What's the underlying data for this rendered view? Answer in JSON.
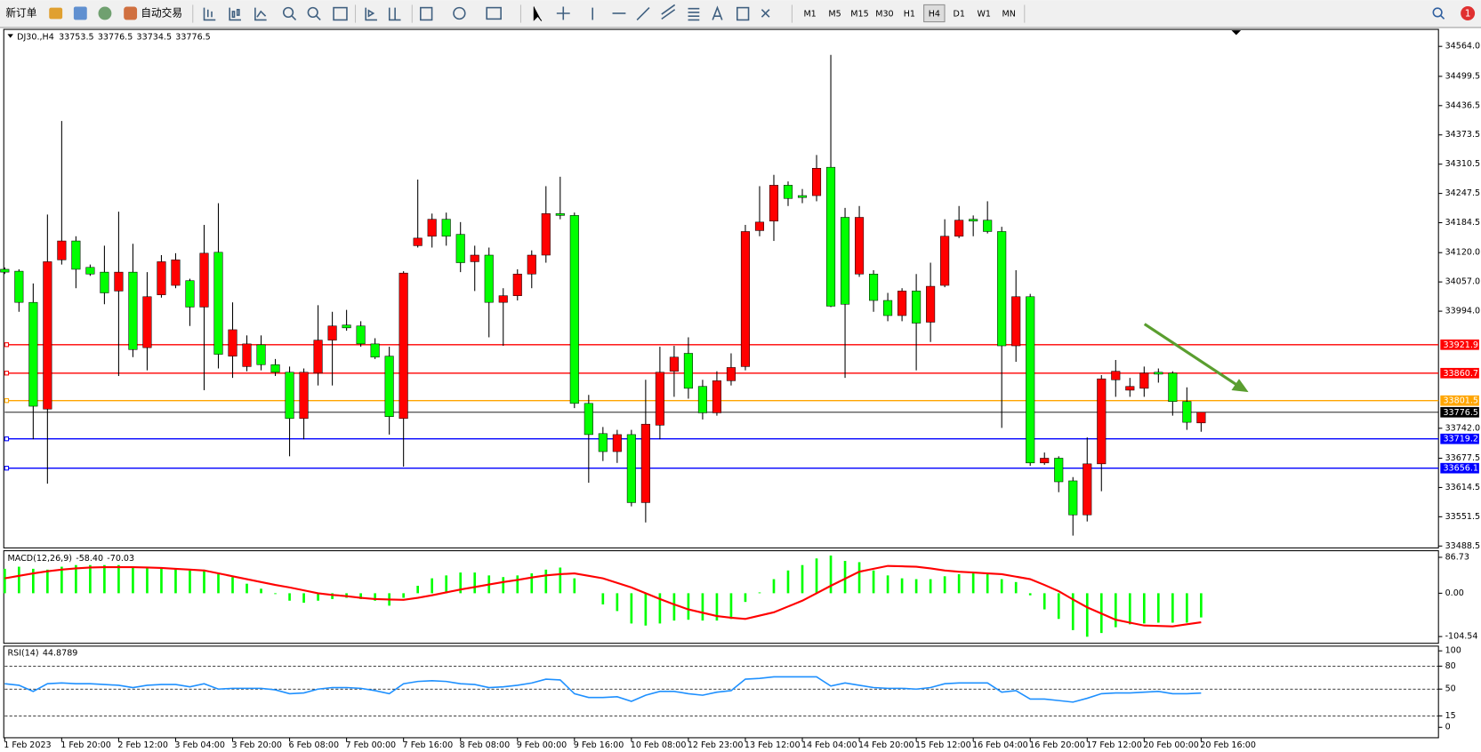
{
  "toolbar": {
    "new_order": "新订单",
    "auto_trading": "自动交易",
    "timeframes": [
      "M1",
      "M5",
      "M15",
      "M30",
      "H1",
      "H4",
      "D1",
      "W1",
      "MN"
    ],
    "active_timeframe": "H4",
    "notifications": 1
  },
  "chart_data": [
    {
      "type": "candlestick",
      "symbol": "DJ30.,H4",
      "categories": [
        "1 Feb 2023",
        null,
        null,
        null,
        "1 Feb 20:00",
        null,
        null,
        null,
        "2 Feb 12:00",
        null,
        null,
        null,
        "3 Feb 04:00",
        null,
        null,
        null,
        "3 Feb 20:00",
        null,
        null,
        null,
        "6 Feb 08:00",
        null,
        null,
        null,
        "7 Feb 00:00",
        null,
        null,
        null,
        "7 Feb 16:00",
        null,
        null,
        null,
        "8 Feb 08:00",
        null,
        null,
        null,
        "9 Feb 00:00",
        null,
        null,
        null,
        "9 Feb 16:00",
        null,
        null,
        null,
        "10 Feb 08:00",
        null,
        null,
        null,
        "12 Feb 23:00",
        null,
        null,
        null,
        "13 Feb 12:00",
        null,
        null,
        null,
        "14 Feb 04:00",
        null,
        null,
        null,
        "14 Feb 20:00",
        null,
        null,
        null,
        "15 Feb 12:00",
        null,
        null,
        null,
        "16 Feb 04:00",
        null,
        null,
        null,
        "16 Feb 20:00",
        null,
        null,
        null,
        "17 Feb 12:00",
        null,
        null,
        null,
        "20 Feb 00:00",
        null,
        null,
        null,
        "20 Feb 16:00"
      ],
      "open": [
        34084.2,
        34080.1,
        34013.0,
        33783.3,
        34104.5,
        34145.2,
        34088.3,
        34078.1,
        34037.4,
        34078.1,
        33915.5,
        34029.3,
        34049.6,
        34059.8,
        34002.9,
        34120.8,
        33897.2,
        33874.8,
        33921.6,
        33878.9,
        33862.6,
        33763.0,
        33860.6,
        33931.7,
        33964.2,
        33962.2,
        33923.6,
        33897.2,
        33763.0,
        34135.0,
        34155.3,
        34191.9,
        34159.4,
        34100.5,
        34114.7,
        34013.0,
        34027.3,
        34074.0,
        34114.7,
        34204.1,
        34200.1,
        33795.5,
        33730.5,
        33691.8,
        33728.4,
        33582.0,
        33748.7,
        33864.7,
        33903.3,
        33832.1,
        33775.2,
        33844.3,
        33874.8,
        34167.5,
        34187.9,
        34265.1,
        34242.8,
        34242.8,
        34303.8,
        34196.0,
        34074.0,
        34074.0,
        34017.1,
        33984.6,
        34037.4,
        33970.3,
        34049.6,
        34155.3,
        34191.9,
        34189.9,
        34165.5,
        33919.5,
        34025.2,
        33667.4,
        33677.6,
        33628.8,
        33555.6,
        33665.4,
        33846.3,
        33824.0,
        33828.0,
        33862.6,
        33860.6,
        33799.6,
        33753.5
      ],
      "high": [
        34088.3,
        34084.2,
        34053.7,
        34202.1,
        34403.4,
        34155.3,
        34094.4,
        34135.0,
        34208.2,
        34139.1,
        34078.1,
        34114.7,
        34118.8,
        34063.9,
        34179.7,
        34226.5,
        34013.0,
        33941.9,
        33941.9,
        33891.1,
        33874.8,
        33870.7,
        34006.9,
        33992.7,
        33996.8,
        33972.4,
        33935.8,
        33917.5,
        34080.1,
        34277.3,
        34204.1,
        34206.2,
        34185.8,
        34135.0,
        34131.0,
        34043.5,
        34084.2,
        34124.9,
        34263.1,
        34283.4,
        34206.2,
        33813.8,
        33744.7,
        33738.6,
        33738.6,
        33846.3,
        33917.5,
        33919.5,
        33937.8,
        33846.3,
        33864.7,
        33903.3,
        34179.7,
        34263.1,
        34287.5,
        34273.3,
        34257.0,
        34330.2,
        34545.7,
        34216.3,
        34220.4,
        34082.2,
        34033.4,
        34043.5,
        34074.0,
        34098.4,
        34191.9,
        34220.4,
        34200.1,
        34230.6,
        34175.7,
        34082.2,
        34031.3,
        33689.8,
        33681.7,
        33636.9,
        33722.3,
        33856.5,
        33889.0,
        33850.4,
        33874.8,
        33870.7,
        33864.7,
        33830.1,
        33776.5
      ],
      "low": [
        34074.0,
        33992.7,
        33718.3,
        33622.7,
        34094.4,
        34043.5,
        34070.0,
        34009.0,
        33854.5,
        33895.1,
        33866.7,
        34023.2,
        34043.5,
        33962.2,
        33824.0,
        33870.7,
        33850.4,
        33864.7,
        33866.7,
        33854.5,
        33681.7,
        33718.3,
        33834.1,
        33834.1,
        33952.0,
        33917.5,
        33891.1,
        33728.4,
        33659.3,
        34131.0,
        34131.0,
        34135.0,
        34078.1,
        34037.4,
        33937.8,
        33919.5,
        34017.1,
        34043.5,
        34098.4,
        34191.9,
        33785.3,
        33624.7,
        33671.5,
        33667.4,
        33573.9,
        33539.4,
        33718.3,
        33809.7,
        33805.7,
        33760.9,
        33769.1,
        33834.1,
        33866.7,
        34155.3,
        34145.2,
        34220.4,
        34226.5,
        34230.6,
        34002.9,
        33850.4,
        34067.9,
        33992.7,
        33972.4,
        33972.4,
        33866.7,
        33927.7,
        34045.6,
        34151.3,
        34155.3,
        34161.4,
        33742.7,
        33885.0,
        33661.3,
        33663.4,
        33604.4,
        33510.9,
        33541.4,
        33606.4,
        33809.7,
        33809.7,
        33809.7,
        33840.2,
        33769.1,
        33738.6,
        33734.5
      ],
      "close": [
        34078.1,
        34013.0,
        33789.4,
        34100.5,
        34145.2,
        34084.2,
        34074.0,
        34033.4,
        34078.1,
        33911.4,
        34025.2,
        34100.5,
        34104.5,
        34002.9,
        34118.8,
        33901.2,
        33954.1,
        33923.6,
        33878.9,
        33862.6,
        33763.0,
        33862.6,
        33931.7,
        33962.2,
        33958.1,
        33923.6,
        33895.1,
        33767.0,
        34076.1,
        34151.3,
        34191.9,
        34155.3,
        34098.4,
        34114.7,
        34013.0,
        34027.3,
        34074.0,
        34114.7,
        34204.1,
        34200.1,
        33795.5,
        33728.4,
        33691.8,
        33728.4,
        33582.0,
        33750.8,
        33862.6,
        33895.1,
        33828.0,
        33775.2,
        33844.3,
        33872.8,
        34165.5,
        34185.8,
        34265.1,
        34236.7,
        34238.7,
        34301.7,
        34004.9,
        34009.0,
        34196.0,
        34017.1,
        33984.6,
        34037.4,
        33968.3,
        34047.6,
        34155.3,
        34189.9,
        34187.9,
        34165.5,
        33919.5,
        34025.2,
        33667.4,
        33677.6,
        33626.8,
        33555.6,
        33665.4,
        33848.4,
        33864.7,
        33832.1,
        33860.6,
        33858.5,
        33799.6,
        33754.8,
        33776.5
      ],
      "up_color": "#ff0000",
      "down_color": "#00ff00",
      "ylim": [
        33484.5,
        34600.6
      ],
      "yticks": [
        {
          "value": 34564.0,
          "label": "34564.0"
        },
        34499.5,
        34436.5,
        34373.5,
        34310.5,
        34247.5,
        34184.5,
        {
          "value": 34120.0,
          "label": "34120.0"
        },
        {
          "value": 34057.0,
          "label": "34057.0"
        },
        {
          "value": 33994.0,
          "label": "33994.0"
        },
        {
          "value": 33742.0,
          "label": "33742.0"
        },
        33677.5,
        33614.5,
        33551.5,
        33488.5
      ],
      "levels": [
        {
          "value": 33921.9,
          "color": "#ff0000"
        },
        {
          "value": 33860.7,
          "color": "#ff0000"
        },
        {
          "value": 33801.5,
          "color": "#ffa500"
        },
        {
          "value": 33719.2,
          "color": "#0000ff"
        },
        {
          "value": 33656.1,
          "color": "#0000ff"
        }
      ]
    },
    {
      "type": "macd",
      "title": "MACD(12,26,9)",
      "last_value_labels": [
        "-58.40",
        "-70.03"
      ],
      "histogram": [
        59,
        64,
        59,
        57,
        64,
        68,
        68,
        68,
        68,
        64,
        64,
        59,
        59,
        55,
        57,
        46,
        39,
        23,
        11,
        -2,
        -18,
        -23,
        -18,
        -14,
        -11,
        -14,
        -18,
        -30,
        -11,
        18,
        36,
        43,
        50,
        50,
        43,
        39,
        43,
        48,
        57,
        62,
        36,
        0,
        -27,
        -43,
        -73,
        -78,
        -73,
        -66,
        -64,
        -66,
        -66,
        -62,
        -21,
        2,
        34,
        55,
        68,
        84,
        91,
        78,
        75,
        55,
        43,
        36,
        34,
        34,
        41,
        46,
        48,
        48,
        34,
        27,
        -5,
        -39,
        -62,
        -89,
        -105,
        -96,
        -82,
        -75,
        -73,
        -71,
        -71,
        -71,
        -58.4
      ],
      "signal": [
        36,
        42,
        48,
        53,
        57,
        60,
        62,
        63,
        63,
        63,
        62,
        61,
        59,
        57,
        55,
        48,
        41,
        34,
        27,
        20,
        14,
        7,
        0,
        -4,
        -7,
        -11,
        -14,
        -15,
        -16,
        -11,
        -5,
        2,
        9,
        15,
        21,
        27,
        32,
        38,
        43,
        46,
        48,
        42,
        36,
        25,
        14,
        0,
        -14,
        -27,
        -39,
        -47,
        -55,
        -59,
        -62,
        -54,
        -46,
        -32,
        -18,
        0,
        18,
        35,
        52,
        59,
        66,
        65,
        64,
        60,
        55,
        52,
        50,
        48,
        46,
        40,
        34,
        20,
        5,
        -15,
        -34,
        -49,
        -64,
        -71,
        -78,
        -79,
        -80,
        -75,
        -70.03
      ],
      "histogram_color": "#00ff00",
      "signal_color": "#ff0000",
      "ylim": [
        -120.8,
        102.6
      ],
      "yticks": [
        86.73,
        {
          "value": 0,
          "label": "0.00"
        },
        -104.54
      ]
    },
    {
      "type": "rsi",
      "title": "RSI(14)",
      "values": [
        57,
        55,
        47,
        57,
        58,
        57,
        57,
        56,
        55,
        52,
        55,
        56,
        56,
        53,
        57,
        50,
        51,
        51,
        51,
        49,
        44,
        45,
        50,
        52,
        52,
        51,
        48,
        44,
        57,
        60,
        61,
        60,
        57,
        56,
        52,
        53,
        55,
        58,
        63,
        62,
        44,
        39,
        39,
        40,
        34,
        42,
        47,
        47,
        44,
        42,
        46,
        48,
        63,
        64,
        66,
        66,
        66,
        66,
        54,
        58,
        55,
        52,
        51,
        51,
        50,
        52,
        57,
        58,
        58,
        58,
        46,
        48,
        37,
        37,
        35,
        33,
        38,
        44,
        45,
        45,
        46,
        47,
        44,
        44,
        44.8789
      ],
      "color": "#1e90ff",
      "ylim": [
        -13.6,
        106.2
      ],
      "yticks": [
        100,
        80,
        50,
        15,
        0
      ],
      "levels": [
        80,
        50,
        15
      ]
    }
  ]
}
